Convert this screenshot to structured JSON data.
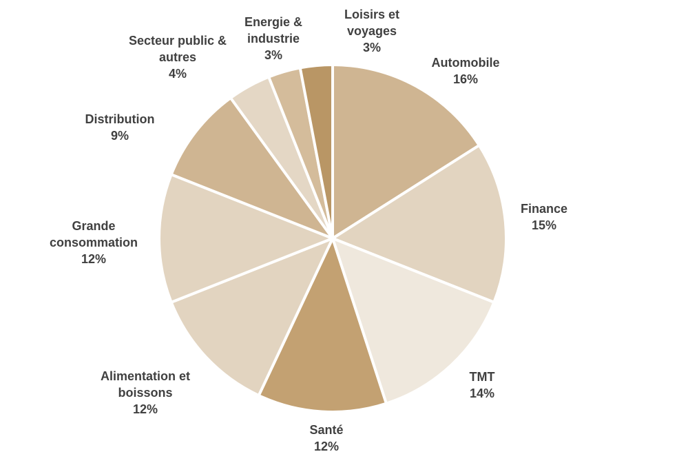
{
  "chart_data": {
    "type": "pie",
    "categories": [
      "Automobile",
      "Finance",
      "TMT",
      "Santé",
      "Alimentation et boissons",
      "Grande consommation",
      "Distribution",
      "Secteur public & autres",
      "Energie & industrie",
      "Loisirs et voyages"
    ],
    "values": [
      16,
      15,
      14,
      12,
      12,
      12,
      9,
      4,
      3,
      3
    ],
    "value_labels": [
      "16%",
      "15%",
      "14%",
      "12%",
      "12%",
      "12%",
      "9%",
      "4%",
      "3%",
      "3%"
    ],
    "colors": [
      "#cfb592",
      "#e2d4c0",
      "#efe8dd",
      "#c3a172",
      "#e2d4c0",
      "#e2d4c0",
      "#cfb592",
      "#e4d7c5",
      "#d4bc9b",
      "#b99665"
    ]
  }
}
